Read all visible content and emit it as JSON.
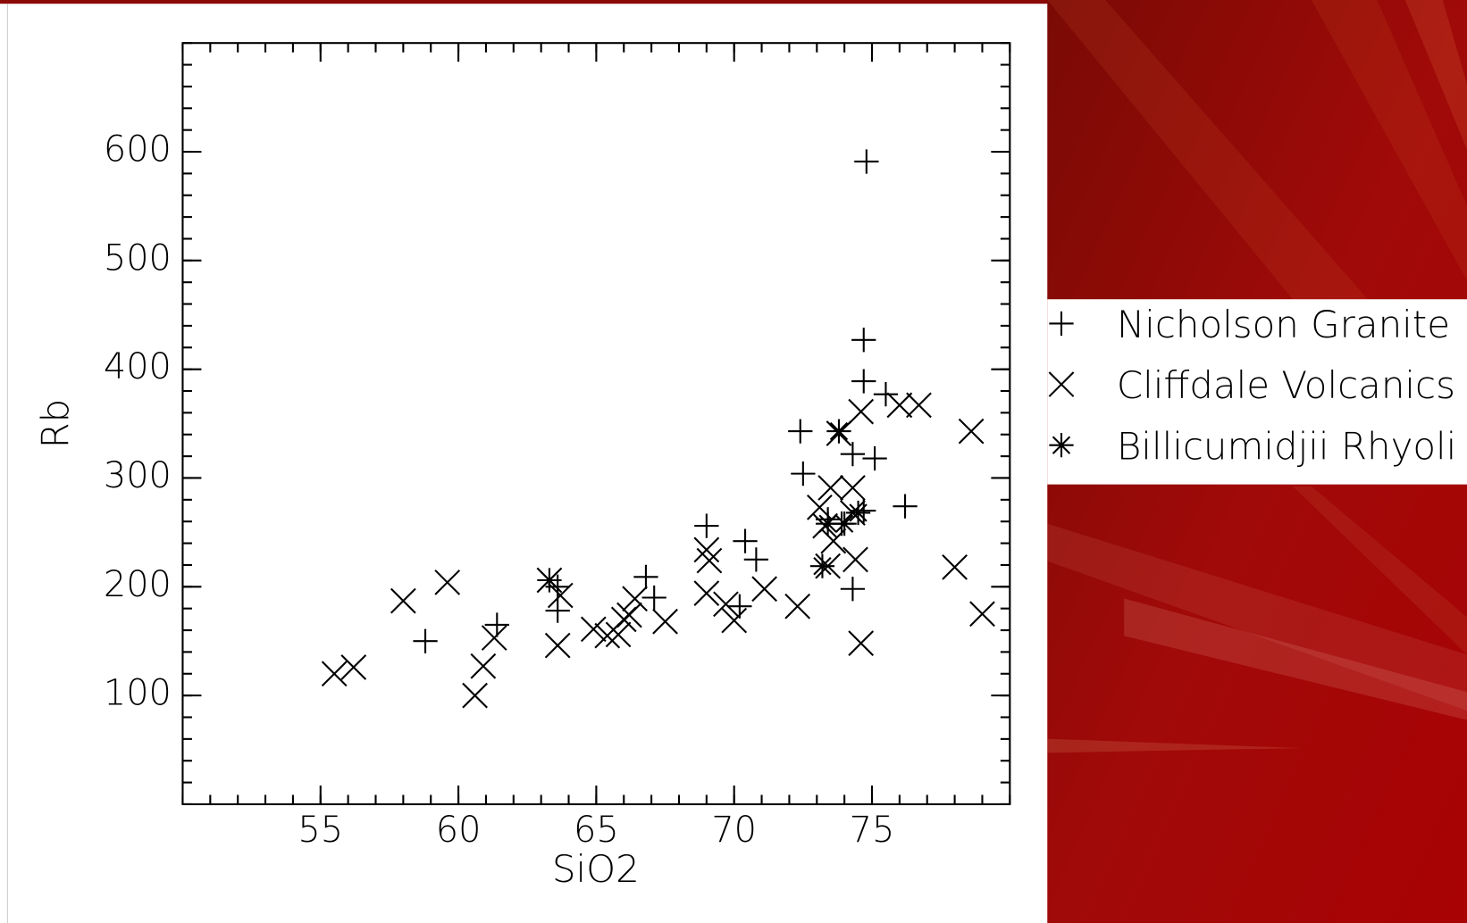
{
  "chart_data": {
    "type": "scatter",
    "xlabel": "SiO2",
    "ylabel": "Rb",
    "xlim": [
      50,
      80
    ],
    "ylim": [
      0,
      700
    ],
    "xticks": [
      55,
      60,
      65,
      70,
      75
    ],
    "yticks": [
      100,
      200,
      300,
      400,
      500,
      600
    ],
    "xminor": 1,
    "yminor": 20,
    "series": [
      {
        "name": "Nicholson Granite",
        "color": "#000000",
        "marker": "plus",
        "x": [
          74.8,
          58.8,
          61.4,
          63.6,
          63.6,
          66.8,
          67.1,
          69.0,
          70.4,
          70.8,
          70.2,
          72.4,
          72.5,
          74.7,
          74.7,
          75.5,
          74.3,
          75.1,
          76.2,
          74.3,
          73.4,
          73.9,
          74.7
        ],
        "values": [
          591,
          150,
          165,
          200,
          178,
          209,
          190,
          256,
          242,
          225,
          182,
          343,
          304,
          427,
          389,
          377,
          322,
          318,
          274,
          198,
          262,
          258,
          270
        ]
      },
      {
        "name": "Cliffdale Volcanics",
        "color": "#000000",
        "marker": "cross",
        "x": [
          55.5,
          56.2,
          58.0,
          59.6,
          60.6,
          60.9,
          61.3,
          63.3,
          63.6,
          63.7,
          64.9,
          65.4,
          65.8,
          66.0,
          66.2,
          66.4,
          67.5,
          69.0,
          69.1,
          69.0,
          69.7,
          70.0,
          71.1,
          72.3,
          73.1,
          73.3,
          73.5,
          73.4,
          73.6,
          74.3,
          74.4,
          74.6,
          74.6,
          73.8,
          76.0,
          76.7,
          78.0,
          78.6,
          79.0,
          74.3
        ],
        "values": [
          120,
          126,
          187,
          204,
          100,
          127,
          153,
          206,
          146,
          192,
          161,
          155,
          156,
          170,
          174,
          189,
          168,
          234,
          224,
          194,
          184,
          169,
          198,
          182,
          273,
          256,
          291,
          219,
          242,
          291,
          225,
          148,
          361,
          341,
          367,
          367,
          218,
          343,
          175,
          268
        ]
      },
      {
        "name": "Billicumidjii Rhyoli",
        "color": "#000000",
        "marker": "star",
        "x": [
          63.3,
          73.8,
          73.2,
          74.0,
          74.5,
          73.4
        ],
        "values": [
          206,
          343,
          219,
          258,
          268,
          258
        ]
      }
    ]
  }
}
